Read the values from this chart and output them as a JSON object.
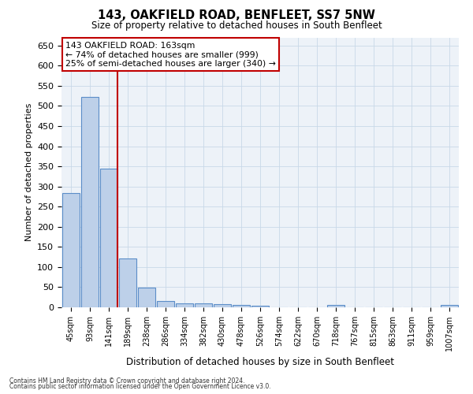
{
  "title": "143, OAKFIELD ROAD, BENFLEET, SS7 5NW",
  "subtitle": "Size of property relative to detached houses in South Benfleet",
  "xlabel": "Distribution of detached houses by size in South Benfleet",
  "ylabel": "Number of detached properties",
  "footnote1": "Contains HM Land Registry data © Crown copyright and database right 2024.",
  "footnote2": "Contains public sector information licensed under the Open Government Licence v3.0.",
  "bin_labels": [
    "45sqm",
    "93sqm",
    "141sqm",
    "189sqm",
    "238sqm",
    "286sqm",
    "334sqm",
    "382sqm",
    "430sqm",
    "478sqm",
    "526sqm",
    "574sqm",
    "622sqm",
    "670sqm",
    "718sqm",
    "767sqm",
    "815sqm",
    "863sqm",
    "911sqm",
    "959sqm",
    "1007sqm"
  ],
  "bar_heights": [
    283,
    522,
    345,
    122,
    48,
    15,
    10,
    10,
    7,
    5,
    3,
    0,
    0,
    0,
    5,
    0,
    0,
    0,
    0,
    0,
    5
  ],
  "bar_color": "#bdd0e9",
  "bar_edge_color": "#5b8dc8",
  "vline_x_index": 2,
  "vline_color": "#c00000",
  "annotation_line1": "143 OAKFIELD ROAD: 163sqm",
  "annotation_line2": "← 74% of detached houses are smaller (999)",
  "annotation_line3": "25% of semi-detached houses are larger (340) →",
  "annotation_box_edgecolor": "#c00000",
  "ylim_max": 670,
  "yticks": [
    0,
    50,
    100,
    150,
    200,
    250,
    300,
    350,
    400,
    450,
    500,
    550,
    600,
    650
  ],
  "grid_color": "#c8d8e8",
  "bg_color": "#edf2f8"
}
